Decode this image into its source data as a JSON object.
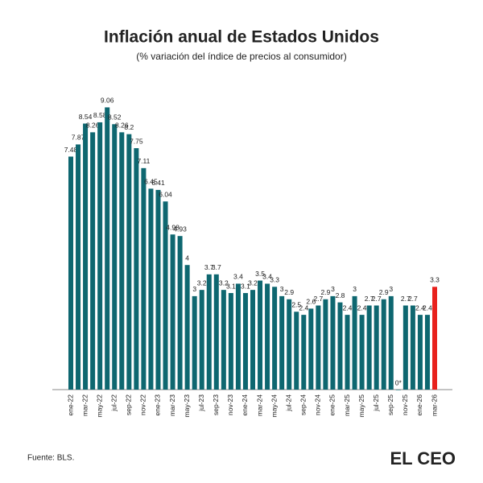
{
  "chart_data": {
    "type": "bar",
    "title": "Inflación anual de Estados Unidos",
    "subtitle": "(% variación del índice de precios al consumidor)",
    "source": "Fuente: BLS.",
    "brand": "EL CEO",
    "categories": [
      "ene-22",
      null,
      "mar-22",
      null,
      "may-22",
      null,
      "jul-22",
      null,
      "sep-22",
      null,
      "nov-22",
      null,
      "ene-23",
      null,
      "mar-23",
      null,
      "may-23",
      null,
      "jul-23",
      null,
      "sep-23",
      null,
      "nov-23",
      null,
      "ene-24",
      null,
      "mar-24",
      null,
      "may-24",
      null,
      "jul-24",
      null,
      "sep-24",
      null,
      "nov-24",
      null,
      "ene-25",
      null,
      "mar-25",
      null,
      "may-25",
      null,
      "jul-25",
      null,
      "sep-25",
      null,
      "nov-25",
      null,
      "ene-26",
      null,
      "mar-26"
    ],
    "values": [
      7.48,
      7.87,
      8.54,
      8.26,
      8.58,
      9.06,
      8.52,
      8.26,
      8.2,
      7.75,
      7.11,
      6.45,
      6.41,
      6.04,
      4.98,
      4.93,
      4,
      3,
      3.2,
      3.7,
      3.7,
      3.2,
      3.1,
      3.4,
      3.1,
      3.2,
      3.5,
      3.4,
      3.3,
      3,
      2.9,
      2.5,
      2.4,
      2.6,
      2.7,
      2.9,
      3,
      2.8,
      2.4,
      3,
      2.4,
      2.7,
      2.7,
      2.9,
      3,
      0,
      2.7,
      2.7,
      2.4,
      2.4,
      3.3
    ],
    "value_labels": [
      "7.48",
      "7.87",
      "8.54",
      "8.26",
      "8.58",
      "9.06",
      "8.52",
      "8.26",
      "8.2",
      "7.75",
      "7.11",
      "6.45",
      "6.41",
      "6.04",
      "4.98",
      "4.93",
      "4",
      "3",
      "3.2",
      "3.7",
      "3.7",
      "3.2",
      "3.1",
      "3.4",
      "3.1",
      "3.2",
      "3.5",
      "3.4",
      "3.3",
      "3",
      "2.9",
      "2.5",
      "2.4",
      "2.6",
      "2.7",
      "2.9",
      "3",
      "2.8",
      "2.4",
      "3",
      "2.4",
      "2.7",
      "2.7",
      "2.9",
      "3",
      "0*",
      "2.7",
      "2.7",
      "2.4",
      "2.4",
      "3.3"
    ],
    "color": "#0e6770",
    "highlight_color": "#e8211d",
    "ylim": [
      0,
      10
    ]
  }
}
